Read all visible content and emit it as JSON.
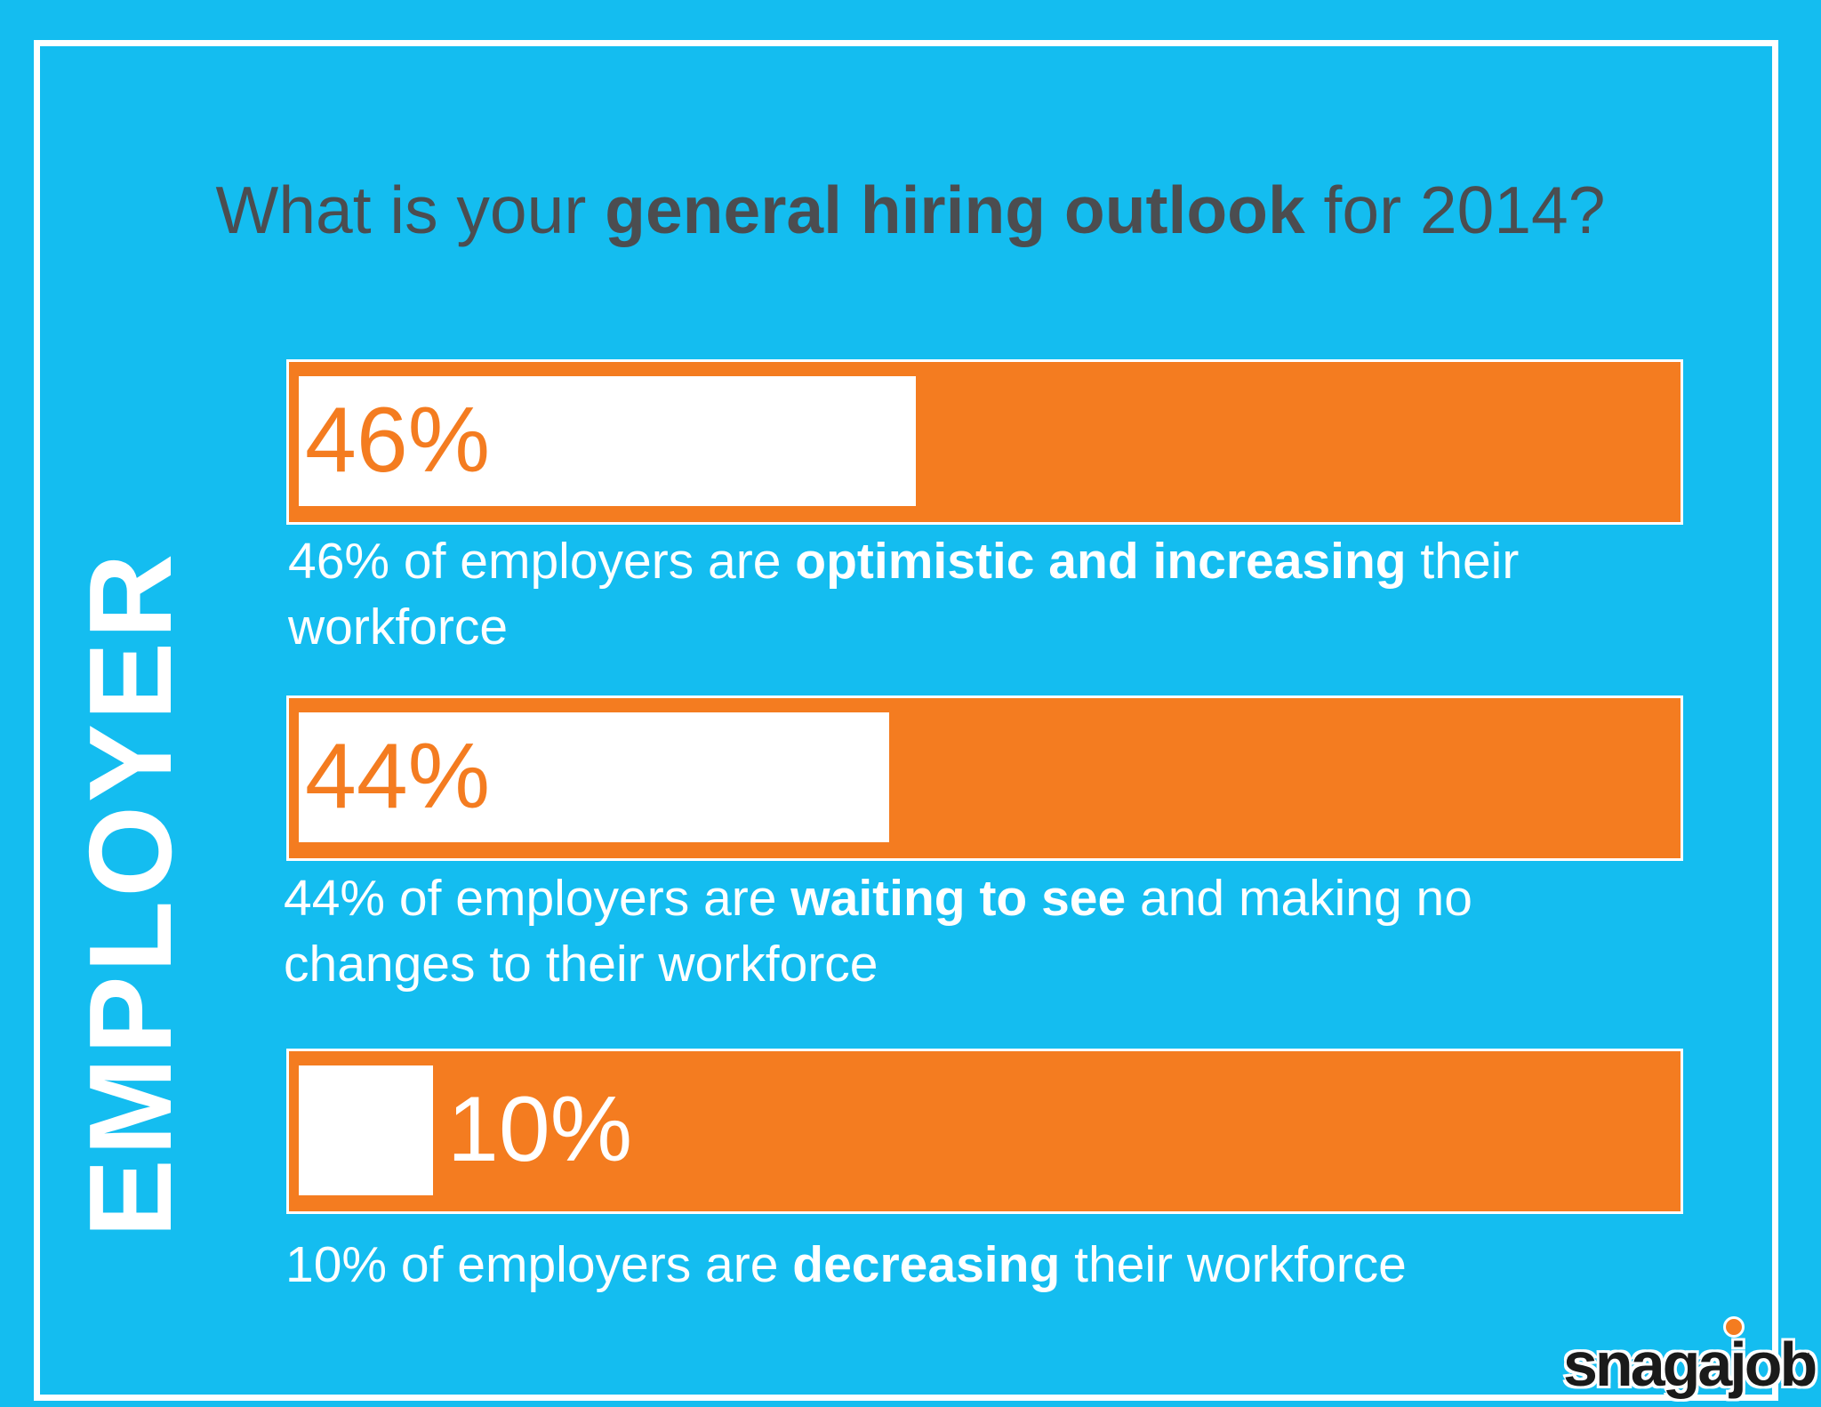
{
  "title": {
    "pre": "What is your ",
    "bold": "general hiring outlook",
    "post": " for 2014?"
  },
  "side_label": "EMPLOYER",
  "colors": {
    "background": "#14bdf0",
    "bar": "#f47c20",
    "fill": "#ffffff",
    "title_text": "#4b4d50"
  },
  "chart_data": {
    "type": "bar",
    "orientation": "horizontal",
    "title": "What is your general hiring outlook for 2014?",
    "ylabel": "EMPLOYER",
    "xlim": [
      0,
      100
    ],
    "categories": [
      "optimistic and increasing their workforce",
      "waiting to see and making no changes to their workforce",
      "decreasing their workforce"
    ],
    "values": [
      46,
      44,
      10
    ],
    "bars": [
      {
        "value": 46,
        "label": "46%",
        "caption_pre": "46% of employers are ",
        "caption_bold": "optimistic and increasing",
        "caption_post": " their workforce"
      },
      {
        "value": 44,
        "label": "44%",
        "caption_pre": "44% of employers are ",
        "caption_bold": "waiting to see",
        "caption_post": " and making no changes to their workforce"
      },
      {
        "value": 10,
        "label": "10%",
        "caption_pre": "10% of employers are ",
        "caption_bold": "decreasing",
        "caption_post": " their workforce"
      }
    ]
  },
  "logo": {
    "text": "snagajob",
    "tm": "™"
  }
}
